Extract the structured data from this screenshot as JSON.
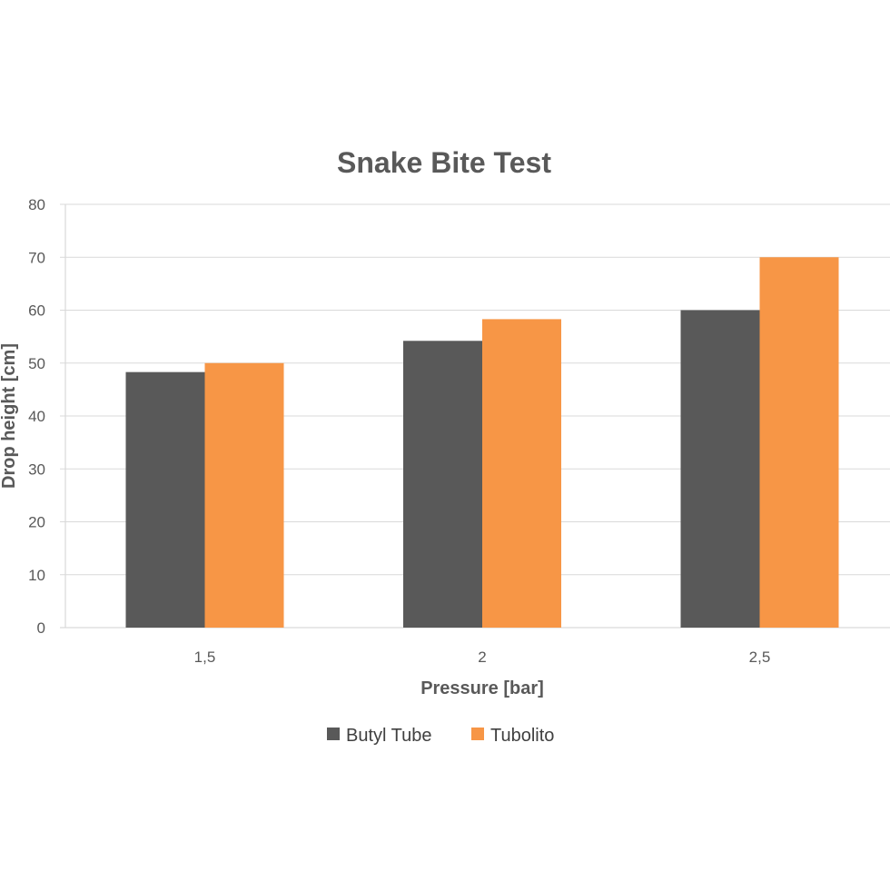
{
  "chart_data": {
    "type": "bar",
    "title": "Snake Bite Test",
    "xlabel": "Pressure [bar]",
    "ylabel": "Drop height [cm]",
    "categories": [
      "1,5",
      "2",
      "2,5"
    ],
    "ylim": [
      0,
      80
    ],
    "yticks": [
      0,
      10,
      20,
      30,
      40,
      50,
      60,
      70,
      80
    ],
    "grid": true,
    "legend_position": "bottom",
    "series": [
      {
        "name": "Butyl Tube",
        "color": "#595959",
        "values": [
          48.3,
          54.2,
          60
        ]
      },
      {
        "name": "Tubolito",
        "color": "#f79646",
        "values": [
          50,
          58.3,
          70
        ]
      }
    ]
  }
}
